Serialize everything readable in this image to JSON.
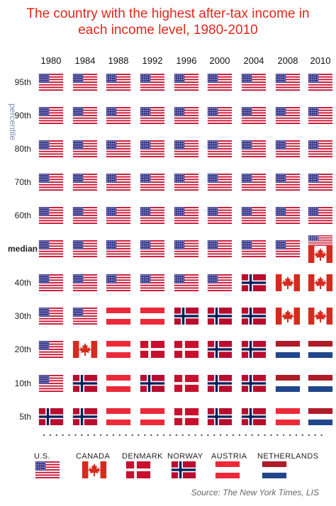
{
  "title": {
    "line1": "The country with the highest after-tax income in",
    "line2": "each income level, 1980-2010"
  },
  "source": "Source: The New York Times, LIS",
  "colors": {
    "title": "#e0271b",
    "us_red": "#c8102e",
    "us_blue": "#3c3b8e",
    "canada_red": "#d52b1e",
    "denmark_red": "#c8102e",
    "norway_red": "#ba0c2f",
    "norway_blue": "#00205b",
    "austria_red": "#ed2939",
    "netherlands_red": "#ae1c28",
    "netherlands_blue": "#21468b"
  },
  "chart_data": {
    "type": "table",
    "title": "The country with the highest after-tax income in each income level, 1980-2010",
    "columns": [
      "1980",
      "1984",
      "1988",
      "1992",
      "1996",
      "2000",
      "2004",
      "2008",
      "2010"
    ],
    "row_axis_label": "percentile",
    "rows": [
      {
        "label": "95th",
        "values": [
          "US",
          "US",
          "US",
          "US",
          "US",
          "US",
          "US",
          "US",
          "US"
        ]
      },
      {
        "label": "90th",
        "values": [
          "US",
          "US",
          "US",
          "US",
          "US",
          "US",
          "US",
          "US",
          "US"
        ]
      },
      {
        "label": "80th",
        "values": [
          "US",
          "US",
          "US",
          "US",
          "US",
          "US",
          "US",
          "US",
          "US"
        ]
      },
      {
        "label": "70th",
        "values": [
          "US",
          "US",
          "US",
          "US",
          "US",
          "US",
          "US",
          "US",
          "US"
        ]
      },
      {
        "label": "60th",
        "values": [
          "US",
          "US",
          "US",
          "US",
          "US",
          "US",
          "US",
          "US",
          "US"
        ]
      },
      {
        "label": "median",
        "values": [
          "US",
          "US",
          "US",
          "US",
          "US",
          "US",
          "US",
          "US",
          "US/CA"
        ]
      },
      {
        "label": "40th",
        "values": [
          "US",
          "US",
          "US",
          "US",
          "US",
          "US",
          "NO",
          "CA",
          "CA"
        ]
      },
      {
        "label": "30th",
        "values": [
          "US",
          "US",
          "AT",
          "AT",
          "NO",
          "NO",
          "NO",
          "CA",
          "CA"
        ]
      },
      {
        "label": "20th",
        "values": [
          "US",
          "CA",
          "AT",
          "DK",
          "DK",
          "NO",
          "NO",
          "NL",
          "NL"
        ]
      },
      {
        "label": "10th",
        "values": [
          "US",
          "NO",
          "AT",
          "NO",
          "DK",
          "NO",
          "NO",
          "NL",
          "NL"
        ]
      },
      {
        "label": "5th",
        "values": [
          "NO",
          "NO",
          "AT",
          "AT",
          "DK",
          "NO",
          "NO",
          "AT",
          "NL"
        ]
      }
    ],
    "legend": [
      {
        "code": "US",
        "label": "U.S."
      },
      {
        "code": "CA",
        "label": "CANADA"
      },
      {
        "code": "DK",
        "label": "DENMARK"
      },
      {
        "code": "NO",
        "label": "NORWAY"
      },
      {
        "code": "AT",
        "label": "AUSTRIA"
      },
      {
        "code": "NL",
        "label": "NETHERLANDS"
      }
    ],
    "legend_placement": "bottom"
  }
}
